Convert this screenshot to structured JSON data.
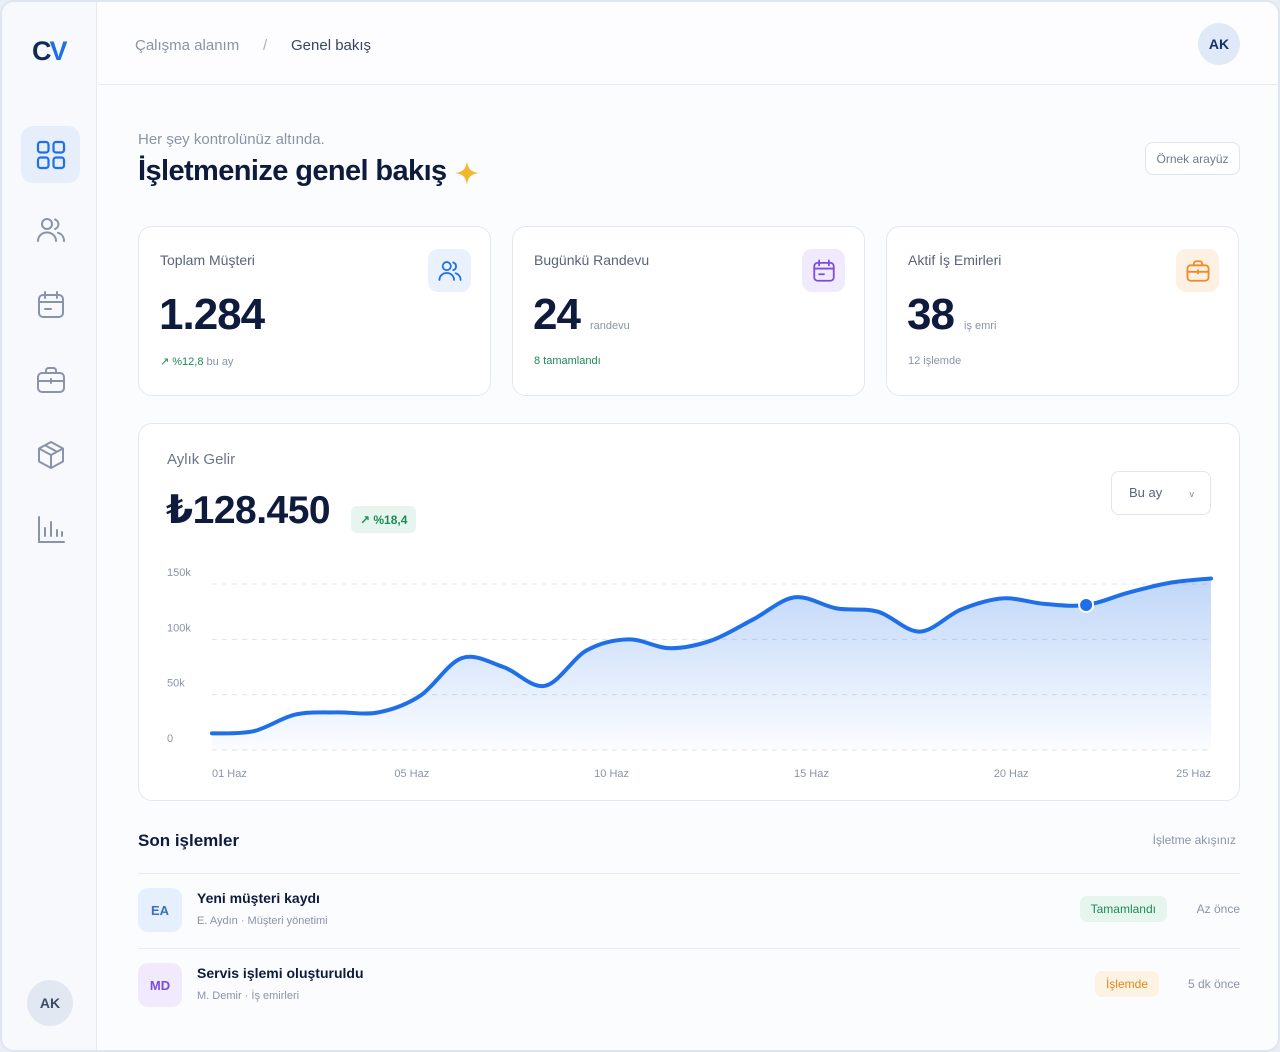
{
  "brand": {
    "logo_c": "C",
    "logo_v": "V"
  },
  "nav": [
    {
      "name": "dashboard",
      "icon": "grid-icon",
      "active": true
    },
    {
      "name": "customers",
      "icon": "users-icon"
    },
    {
      "name": "calendar",
      "icon": "calendar-icon"
    },
    {
      "name": "work-orders",
      "icon": "briefcase-icon"
    },
    {
      "name": "products",
      "icon": "box-icon"
    },
    {
      "name": "reports",
      "icon": "bar-chart-icon"
    }
  ],
  "user": {
    "initials": "AK"
  },
  "breadcrumb": {
    "workspace": "Çalışma alanım",
    "separator": "/",
    "current": "Genel bakış"
  },
  "header": {
    "subtitle": "Her şey kontrolünüz altında.",
    "title": "İşletmenize genel bakış",
    "demo_button": "Örnek arayüz"
  },
  "stats": [
    {
      "label": "Toplam Müşteri",
      "value": "1.284",
      "unit": "",
      "foot": "↗ %12,8",
      "foot_suffix": " bu ay",
      "icon": "users-icon",
      "accent": "#1f6fe8"
    },
    {
      "label": "Bugünkü Randevu",
      "value": "24",
      "unit": "randevu",
      "foot": "8 tamamlandı",
      "foot_suffix": "",
      "icon": "calendar-icon",
      "accent": "#7c4ddb"
    },
    {
      "label": "Aktif İş Emirleri",
      "value": "38",
      "unit": "iş emri",
      "foot": "12 işlemde",
      "foot_suffix": "",
      "icon": "briefcase-icon",
      "accent": "#f08a24"
    }
  ],
  "revenue": {
    "label": "Aylık Gelir",
    "total": "₺128.450",
    "change": "↗ %18,4",
    "period": "Bu ay",
    "period_chevron": "v"
  },
  "chart_data": {
    "type": "area",
    "y_ticks": [
      "150k",
      "100k",
      "50k",
      "0"
    ],
    "x_ticks": [
      "01 Haz",
      "05 Haz",
      "10 Haz",
      "15 Haz",
      "20 Haz",
      "25 Haz"
    ],
    "ylim": [
      0,
      150000
    ],
    "x": [
      1,
      2,
      3,
      4,
      5,
      6,
      7,
      8,
      9,
      10,
      11,
      12,
      13,
      14,
      15,
      16,
      17,
      18,
      19,
      20,
      21,
      22,
      23,
      24,
      25
    ],
    "values": [
      15000,
      17000,
      32000,
      34000,
      34000,
      49000,
      83000,
      75000,
      58000,
      90000,
      100000,
      92000,
      99000,
      118000,
      138000,
      128000,
      125000,
      107000,
      127000,
      137000,
      132000,
      131000,
      142000,
      151000,
      155000
    ],
    "highlight_x": 22,
    "color": "#1f6fe8",
    "grid": true
  },
  "activity": {
    "title": "Son işlemler",
    "link": "İşletme akışınız",
    "rows": [
      {
        "initials": "EA",
        "name": "Yeni müşteri kaydı",
        "meta": "E. Aydın · Müşteri yönetimi",
        "status": "Tamamlandı",
        "time": "Az önce",
        "status_color": "#1d8a57",
        "status_bg": "#e6f6ee",
        "avatar_color": "#3b6fc4",
        "avatar_bg": "#e6effc"
      },
      {
        "initials": "MD",
        "name": "Servis işlemi oluşturuldu",
        "meta": "M. Demir · İş emirleri",
        "status": "İşlemde",
        "time": "5 dk önce",
        "status_color": "#d98a1c",
        "status_bg": "#fdf3e3",
        "avatar_color": "#7c4ddb",
        "avatar_bg": "#f0eafc"
      }
    ]
  }
}
